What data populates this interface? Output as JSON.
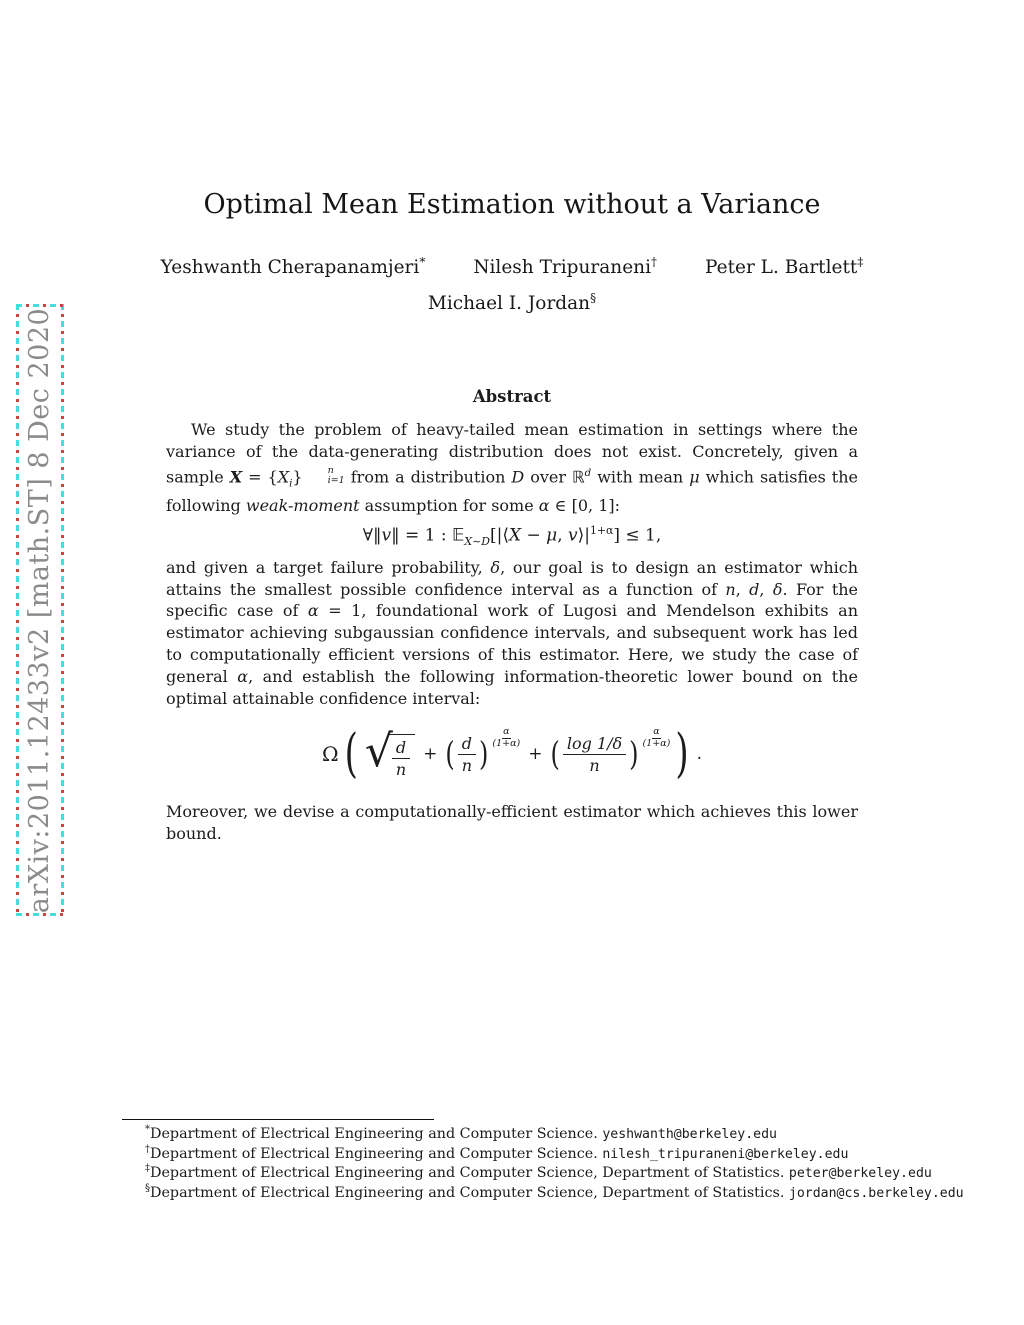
{
  "watermark": {
    "text": "arXiv:2011.12433v2  [math.ST]  8 Dec 2020",
    "text_color": "#8b8b8b",
    "dash_color": "#45dede",
    "dot_color": "#c9453f"
  },
  "header": {
    "title": "Optimal Mean Estimation without a Variance",
    "authors_row1": [
      {
        "name": "Yeshwanth Cherapanamjeri",
        "mark": "*"
      },
      {
        "name": "Nilesh Tripuraneni",
        "mark": "†"
      },
      {
        "name": "Peter L. Bartlett",
        "mark": "‡"
      }
    ],
    "authors_row2": [
      {
        "name": "Michael I. Jordan",
        "mark": "§"
      }
    ]
  },
  "abstract": {
    "heading": "Abstract",
    "para1": [
      {
        "t": "We study the problem of heavy-tailed mean estimation in settings where the variance of the data-generating distribution does not exist. Concretely, given a sample ",
        "s": "n"
      },
      {
        "t": "X",
        "s": "bi"
      },
      {
        "t": " = {",
        "s": "n"
      },
      {
        "t": "X",
        "s": "i"
      },
      {
        "t": "i",
        "s": "sub"
      },
      {
        "t": "}",
        "s": "n"
      },
      {
        "t": "n",
        "t2": "i=1",
        "s": "stack"
      },
      {
        "t": " from a distribution ",
        "s": "n"
      },
      {
        "t": "D",
        "s": "cal"
      },
      {
        "t": " over ",
        "s": "n"
      },
      {
        "t": "ℝ",
        "s": "bb"
      },
      {
        "t": "d",
        "s": "supi"
      },
      {
        "t": " with mean ",
        "s": "n"
      },
      {
        "t": "μ",
        "s": "i"
      },
      {
        "t": " which satisfies the following ",
        "s": "n"
      },
      {
        "t": "weak-moment",
        "s": "i"
      },
      {
        "t": " assumption for some ",
        "s": "n"
      },
      {
        "t": "α",
        "s": "i"
      },
      {
        "t": " ∈ [0, 1]:",
        "s": "n"
      }
    ],
    "formula1": [
      {
        "t": "∀‖",
        "s": "n"
      },
      {
        "t": "v",
        "s": "i"
      },
      {
        "t": "‖ = 1 : ",
        "s": "n"
      },
      {
        "t": "𝔼",
        "s": "bb"
      },
      {
        "t": "X∼D",
        "s": "subi"
      },
      {
        "t": "[|⟨",
        "s": "n"
      },
      {
        "t": "X",
        "s": "i"
      },
      {
        "t": " − ",
        "s": "n"
      },
      {
        "t": "μ",
        "s": "i"
      },
      {
        "t": ", ",
        "s": "n"
      },
      {
        "t": "v",
        "s": "i"
      },
      {
        "t": "⟩|",
        "s": "n"
      },
      {
        "t": "1+α",
        "s": "sup"
      },
      {
        "t": "] ≤ 1,",
        "s": "n"
      }
    ],
    "para2": [
      {
        "t": "and given a target failure probability, ",
        "s": "n"
      },
      {
        "t": "δ",
        "s": "i"
      },
      {
        "t": ", our goal is to design an estimator which attains the smallest possible confidence interval as a function of ",
        "s": "n"
      },
      {
        "t": "n",
        "s": "i"
      },
      {
        "t": ", ",
        "s": "n"
      },
      {
        "t": "d",
        "s": "i"
      },
      {
        "t": ", ",
        "s": "n"
      },
      {
        "t": "δ",
        "s": "i"
      },
      {
        "t": ".  For the specific case of ",
        "s": "n"
      },
      {
        "t": "α",
        "s": "i"
      },
      {
        "t": " = 1, foundational work of Lugosi and Mendelson exhibits an estimator achieving subgaussian confidence intervals, and subsequent work has led to computationally efficient versions of this estimator. Here, we study the case of general ",
        "s": "n"
      },
      {
        "t": "α",
        "s": "i"
      },
      {
        "t": ", and establish the following information-theoretic lower bound on the optimal attainable confidence interval:",
        "s": "n"
      }
    ],
    "formula2": {
      "omega": "Ω",
      "open_paren": "(",
      "radical": "√",
      "sqrt_num": "d",
      "sqrt_den": "n",
      "plus1": "+",
      "p1_open": "(",
      "frac1_num": "d",
      "frac1_den": "n",
      "p1_close": ")",
      "exp1_num": "α",
      "exp1_den": "(1+α)",
      "plus2": "+",
      "p2_open": "(",
      "frac2_num": "log 1/δ",
      "frac2_den": "n",
      "p2_close": ")",
      "exp2_num": "α",
      "exp2_den": "(1+α)",
      "close_paren": ")",
      "period": "."
    },
    "para3": [
      {
        "t": "Moreover, we devise a computationally-efficient estimator which achieves this lower bound.",
        "s": "n"
      }
    ]
  },
  "footnotes": {
    "items": [
      {
        "mark": "*",
        "text": "Department of Electrical Engineering and Computer Science. ",
        "email": "yeshwanth@berkeley.edu"
      },
      {
        "mark": "†",
        "text": "Department of Electrical Engineering and Computer Science. ",
        "email": "nilesh_tripuraneni@berkeley.edu"
      },
      {
        "mark": "‡",
        "text": "Department of Electrical Engineering and Computer Science, Department of Statistics. ",
        "email": "peter@berkeley.edu"
      },
      {
        "mark": "§",
        "text": "Department of Electrical Engineering and Computer Science, Department of Statistics. ",
        "email": "jordan@cs.berkeley.edu"
      }
    ]
  }
}
